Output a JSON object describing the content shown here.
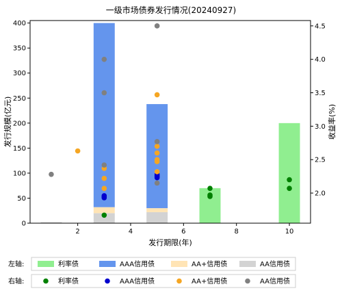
{
  "chart_data": {
    "type": "bar",
    "title": "一级市场债券发行情况(20240927)",
    "xlabel": "发行期限(年)",
    "ylabel_left": "发行规模(亿元)",
    "ylabel_right": "收益率(%)",
    "xlim": [
      0.2,
      10.8
    ],
    "ylim_left": [
      0,
      405
    ],
    "ylim_right": [
      1.55,
      4.58
    ],
    "x_ticks": [
      2,
      4,
      6,
      8,
      10
    ],
    "y_ticks_left": [
      0,
      50,
      100,
      150,
      200,
      250,
      300,
      350,
      400
    ],
    "y_ticks_right": [
      2.0,
      2.5,
      3.0,
      3.5,
      4.0,
      4.5
    ],
    "grid": false,
    "bar_width_years": 0.8,
    "bar_series": [
      {
        "name": "利率债",
        "color": "#90ee90",
        "bars": [
          {
            "x": 7,
            "value": 70
          },
          {
            "x": 10,
            "value": 200
          }
        ]
      },
      {
        "name": "AAA信用债",
        "color": "#6495ed",
        "bars": [
          {
            "x": 3,
            "value": 368
          },
          {
            "x": 5,
            "value": 208
          }
        ]
      },
      {
        "name": "AA+信用债",
        "color": "#ffe4b5",
        "bars": [
          {
            "x": 3,
            "value": 12
          },
          {
            "x": 5,
            "value": 8
          }
        ]
      },
      {
        "name": "AA信用债",
        "color": "#d3d3d3",
        "bars": [
          {
            "x": 1,
            "value": 2
          },
          {
            "x": 3,
            "value": 20
          },
          {
            "x": 5,
            "value": 22
          }
        ]
      }
    ],
    "scatter_series": [
      {
        "name": "利率债",
        "color": "#008000",
        "points": [
          [
            3,
            1.67
          ],
          [
            7,
            2.07
          ],
          [
            7,
            1.97
          ],
          [
            7,
            1.95
          ],
          [
            10,
            2.2
          ],
          [
            10,
            2.07
          ]
        ]
      },
      {
        "name": "AAA信用债",
        "color": "#0000cd",
        "points": [
          [
            3,
            1.96
          ],
          [
            3,
            1.94
          ],
          [
            3,
            1.93
          ],
          [
            5,
            2.28
          ],
          [
            5,
            2.26
          ],
          [
            5,
            2.25
          ],
          [
            5,
            2.23
          ]
        ]
      },
      {
        "name": "AA+信用债",
        "color": "#f5a623",
        "points": [
          [
            2,
            2.63
          ],
          [
            3,
            2.37
          ],
          [
            3,
            2.22
          ],
          [
            3,
            2.07
          ],
          [
            5,
            3.47
          ],
          [
            5,
            2.7
          ],
          [
            5,
            2.6
          ],
          [
            5,
            2.5
          ],
          [
            5,
            2.47
          ],
          [
            5,
            2.32
          ]
        ]
      },
      {
        "name": "AA信用债",
        "color": "#808080",
        "points": [
          [
            1,
            2.28
          ],
          [
            3,
            4.0
          ],
          [
            3,
            3.5
          ],
          [
            3,
            2.42
          ],
          [
            5,
            4.5
          ],
          [
            5,
            2.77
          ],
          [
            5,
            2.15
          ]
        ]
      }
    ]
  },
  "legend": {
    "left_axis_label": "左轴:",
    "right_axis_label": "右轴:"
  }
}
